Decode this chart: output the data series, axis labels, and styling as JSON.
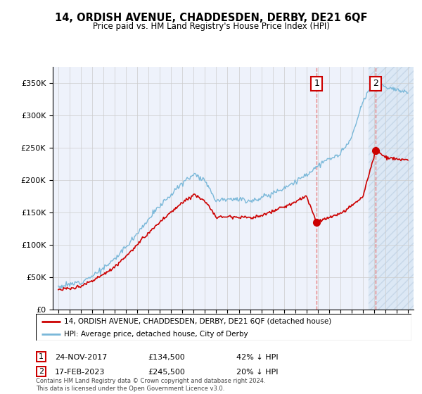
{
  "title": "14, ORDISH AVENUE, CHADDESDEN, DERBY, DE21 6QF",
  "subtitle": "Price paid vs. HM Land Registry's House Price Index (HPI)",
  "hpi_color": "#7ab8d9",
  "price_color": "#cc0000",
  "marker_color": "#cc0000",
  "background_color": "#ffffff",
  "plot_bg_color": "#eef2fb",
  "hatch_region_color": "#dce8f5",
  "ylim": [
    0,
    375000
  ],
  "yticks": [
    0,
    50000,
    100000,
    150000,
    200000,
    250000,
    300000,
    350000
  ],
  "legend_label_price": "14, ORDISH AVENUE, CHADDESDEN, DERBY, DE21 6QF (detached house)",
  "legend_label_hpi": "HPI: Average price, detached house, City of Derby",
  "footnote": "Contains HM Land Registry data © Crown copyright and database right 2024.\nThis data is licensed under the Open Government Licence v3.0.",
  "sale1_date": "24-NOV-2017",
  "sale1_price": "£134,500",
  "sale1_hpi": "42% ↓ HPI",
  "sale1_year": 2017.9,
  "sale1_val": 134500,
  "sale2_date": "17-FEB-2023",
  "sale2_price": "£245,500",
  "sale2_hpi": "20% ↓ HPI",
  "sale2_year": 2023.13,
  "sale2_val": 245500,
  "hatch_start": 2022.5,
  "xmin": 1994.5,
  "xmax": 2026.5
}
